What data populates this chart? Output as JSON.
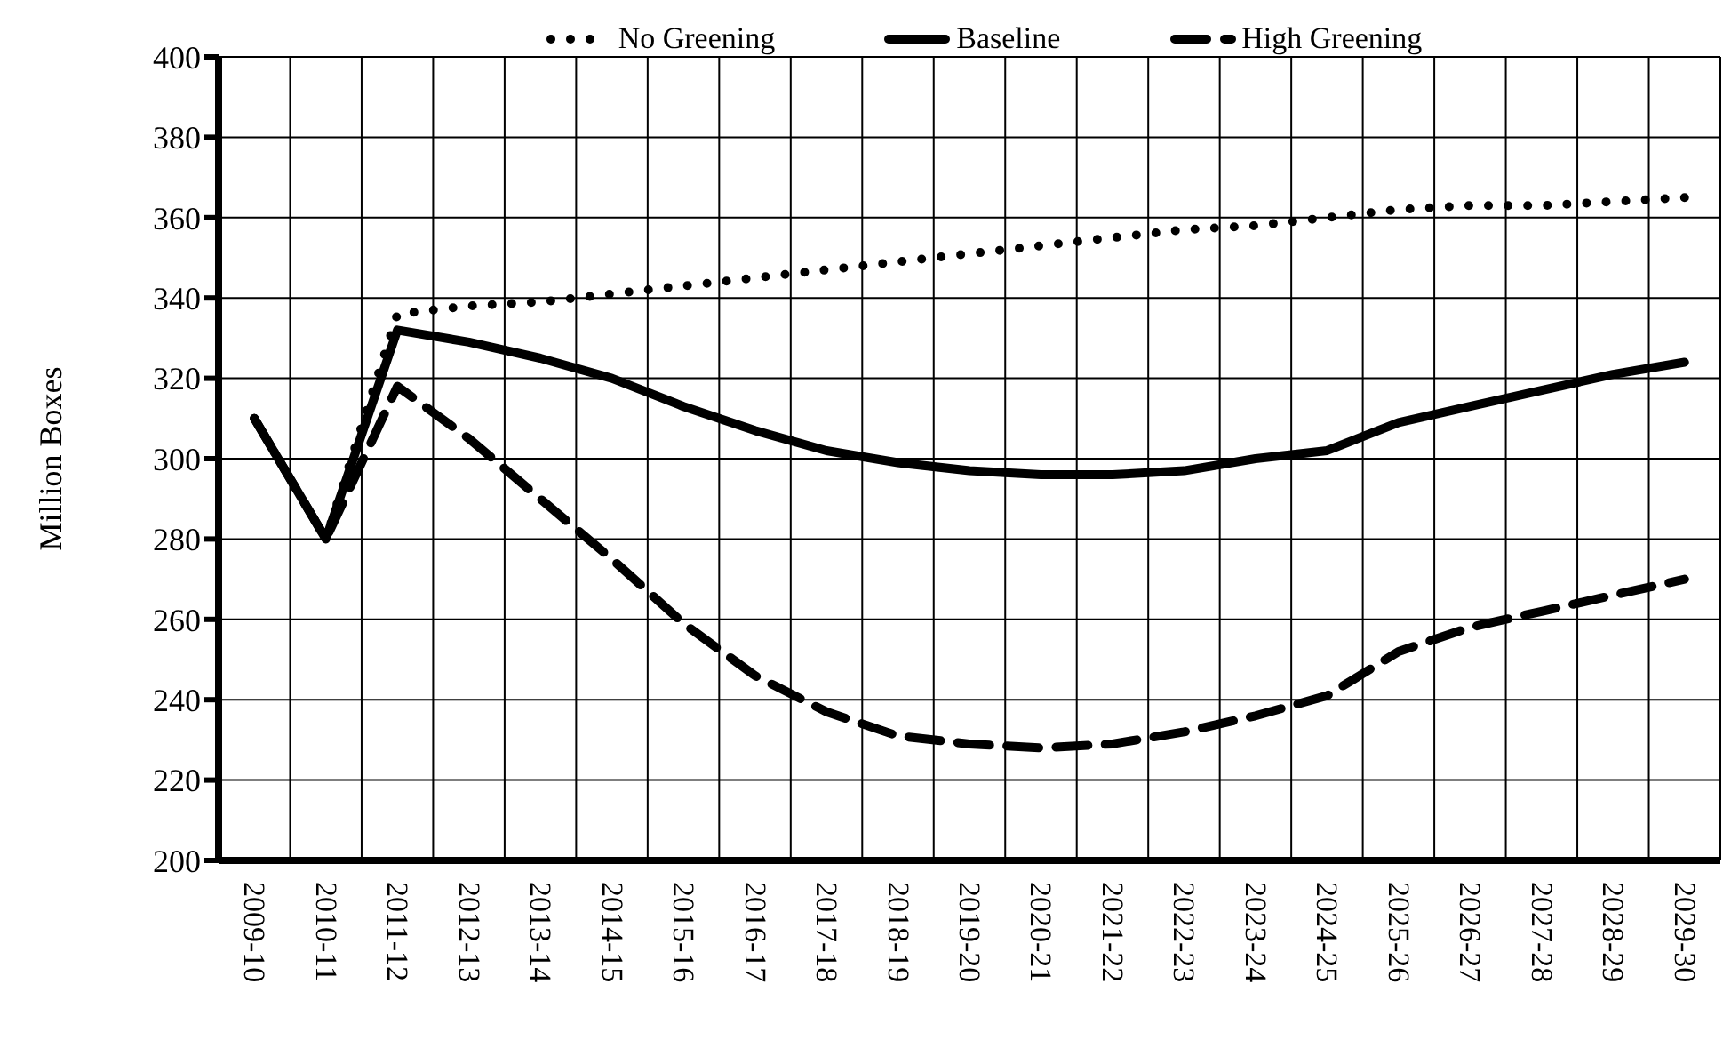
{
  "chart_data": {
    "type": "line",
    "ylabel": "Million Boxes",
    "categories": [
      "2009-10",
      "2010-11",
      "2011-12",
      "2012-13",
      "2013-14",
      "2014-15",
      "2015-16",
      "2016-17",
      "2017-18",
      "2018-19",
      "2019-20",
      "2020-21",
      "2021-22",
      "2022-23",
      "2023-24",
      "2024-25",
      "2025-26",
      "2026-27",
      "2027-28",
      "2028-29",
      "2029-30"
    ],
    "series": [
      {
        "name": "No Greening",
        "color": "#000000",
        "line_style": "dotted",
        "values": [
          310,
          280,
          336,
          338,
          339,
          341,
          343,
          345,
          347,
          349,
          351,
          353,
          355,
          357,
          358,
          360,
          362,
          363,
          363,
          364,
          365
        ]
      },
      {
        "name": "Baseline",
        "color": "#000000",
        "line_style": "solid",
        "values": [
          310,
          280,
          332,
          329,
          325,
          320,
          313,
          307,
          302,
          299,
          297,
          296,
          296,
          297,
          300,
          302,
          309,
          313,
          317,
          321,
          324
        ]
      },
      {
        "name": "High Greening",
        "color": "#000000",
        "line_style": "dashed",
        "values": [
          310,
          280,
          318,
          305,
          290,
          275,
          259,
          246,
          237,
          231,
          229,
          228,
          229,
          232,
          236,
          241,
          252,
          258,
          262,
          266,
          270
        ]
      }
    ],
    "ylim": [
      200,
      400
    ],
    "yticks": [
      200,
      220,
      240,
      260,
      280,
      300,
      320,
      340,
      360,
      380,
      400
    ],
    "grid": true,
    "legend": "top",
    "marker": "none"
  }
}
